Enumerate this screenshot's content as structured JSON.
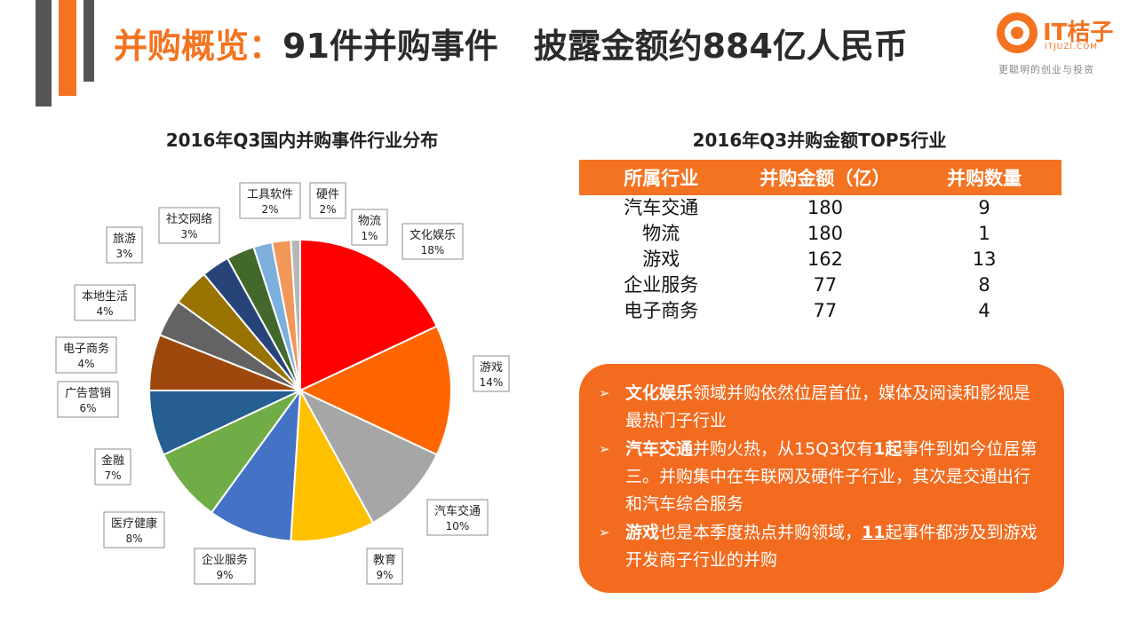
{
  "header": {
    "title_accent": "并购概览：",
    "title_rest": "91件并购事件   披露金额约884亿人民币"
  },
  "logo": {
    "name": "IT桔子",
    "url": "ITJUZI.COM",
    "slogan": "更聪明的创业与投资"
  },
  "chart_data": {
    "type": "pie",
    "title": "2016年Q3国内并购事件行业分布",
    "slices": [
      {
        "label": "文化娱乐",
        "value": 18,
        "pct": "18%",
        "color": "#ff0000"
      },
      {
        "label": "游戏",
        "value": 14,
        "pct": "14%",
        "color": "#ff6600"
      },
      {
        "label": "汽车交通",
        "value": 10,
        "pct": "10%",
        "color": "#a6a6a6"
      },
      {
        "label": "教育",
        "value": 9,
        "pct": "9%",
        "color": "#ffc000"
      },
      {
        "label": "企业服务",
        "value": 9,
        "pct": "9%",
        "color": "#4472c4"
      },
      {
        "label": "医疗健康",
        "value": 8,
        "pct": "8%",
        "color": "#70ad47"
      },
      {
        "label": "金融",
        "value": 7,
        "pct": "7%",
        "color": "#255e91"
      },
      {
        "label": "广告营销",
        "value": 6,
        "pct": "6%",
        "color": "#9e480e"
      },
      {
        "label": "电子商务",
        "value": 4,
        "pct": "4%",
        "color": "#636363"
      },
      {
        "label": "本地生活",
        "value": 4,
        "pct": "4%",
        "color": "#997300"
      },
      {
        "label": "旅游",
        "value": 3,
        "pct": "3%",
        "color": "#264478"
      },
      {
        "label": "社交网络",
        "value": 3,
        "pct": "3%",
        "color": "#43682b"
      },
      {
        "label": "工具软件",
        "value": 2,
        "pct": "2%",
        "color": "#7cafdd"
      },
      {
        "label": "硬件",
        "value": 2,
        "pct": "2%",
        "color": "#f1975a"
      },
      {
        "label": "物流",
        "value": 1,
        "pct": "1%",
        "color": "#b7b7b7"
      }
    ]
  },
  "top5": {
    "title": "2016年Q3并购金额TOP5行业",
    "headers": [
      "所属行业",
      "并购金额（亿）",
      "并购数量"
    ],
    "rows": [
      [
        "汽车交通",
        "180",
        "9"
      ],
      [
        "物流",
        "180",
        "1"
      ],
      [
        "游戏",
        "162",
        "13"
      ],
      [
        "企业服务",
        "77",
        "8"
      ],
      [
        "电子商务",
        "77",
        "4"
      ]
    ]
  },
  "notes": {
    "arrow": "➢",
    "n1_bold": "文化娱乐",
    "n1_text": "领域并购依然位居首位，媒体及阅读和影视是最热门子行业",
    "n2_bold": "汽车交通",
    "n2_text_a": "并购火热，从15Q3仅有",
    "n2_bold_num": "1起",
    "n2_text_b": "事件到如今位居第三。并购集中在车联网及硬件子行业，其次是交通出行和汽车综合服务",
    "n3_bold": "游戏",
    "n3_text_a": "也是本季度热点并购领域，",
    "n3_under": "11",
    "n3_text_b": "起事件都涉及到游戏开发商子行业的并购"
  },
  "colors": {
    "accent": "#f47321",
    "note_bg": "#f26b1f"
  }
}
